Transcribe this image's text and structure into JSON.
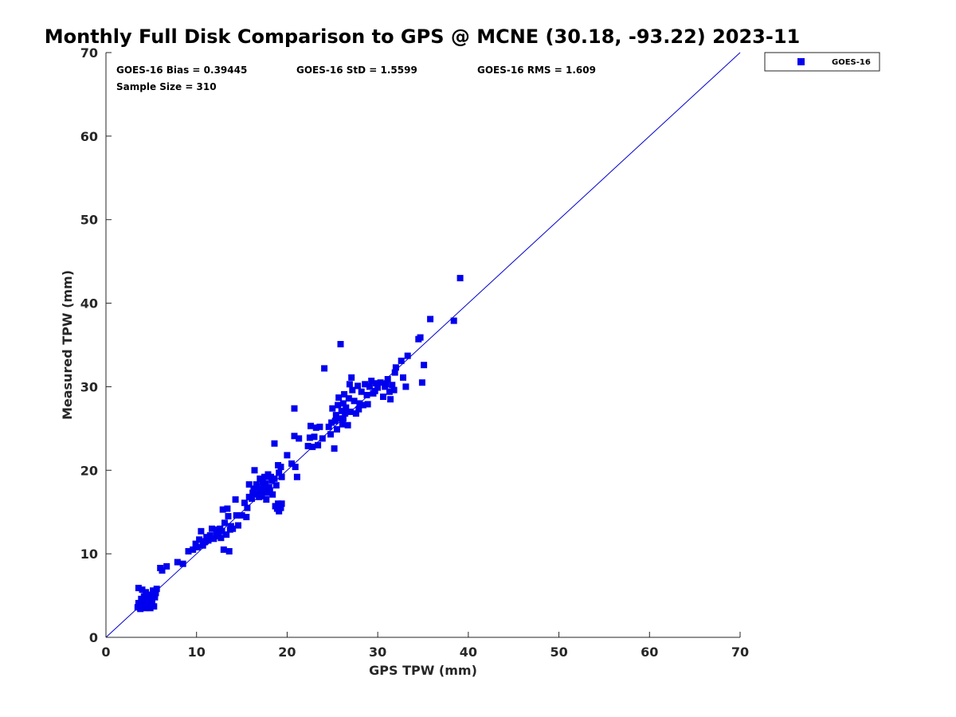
{
  "chart_data": {
    "type": "scatter",
    "title": "Monthly Full Disk Comparison to GPS @ MCNE (30.18, -93.22) 2023-11",
    "xlabel": "GPS TPW (mm)",
    "ylabel": "Measured TPW (mm)",
    "xlim": [
      0,
      70
    ],
    "ylim": [
      0,
      70
    ],
    "xticks": [
      "0",
      "10",
      "20",
      "30",
      "40",
      "50",
      "60",
      "70"
    ],
    "yticks": [
      "0",
      "10",
      "20",
      "30",
      "40",
      "50",
      "60",
      "70"
    ],
    "grid": false,
    "legend_position": "outside-top-right",
    "reference_line": [
      [
        0,
        0
      ],
      [
        70,
        70
      ]
    ],
    "stats": {
      "bias": "GOES-16 Bias = 0.39445",
      "std": "GOES-16 StD = 1.5599",
      "rms": "GOES-16 RMS = 1.609",
      "sample": "Sample Size = 310"
    },
    "colors": {
      "marker": "#0000ee",
      "line": "#0000cc",
      "axis": "#262626"
    },
    "series": [
      {
        "name": "GOES-16",
        "points": [
          [
            3.5,
            3.6
          ],
          [
            3.6,
            4.1
          ],
          [
            3.8,
            3.4
          ],
          [
            3.9,
            4.6
          ],
          [
            4.1,
            3.7
          ],
          [
            4.2,
            4.9
          ],
          [
            4.3,
            4.2
          ],
          [
            4.4,
            5.4
          ],
          [
            4.6,
            3.9
          ],
          [
            4.7,
            4.7
          ],
          [
            4.8,
            5.1
          ],
          [
            4.9,
            3.5
          ],
          [
            5.0,
            4.3
          ],
          [
            5.2,
            5.6
          ],
          [
            5.3,
            3.7
          ],
          [
            5.4,
            4.8
          ],
          [
            5.5,
            5.3
          ],
          [
            3.6,
            5.9
          ],
          [
            4.0,
            5.7
          ],
          [
            5.6,
            5.8
          ],
          [
            4.5,
            5.0
          ],
          [
            5.1,
            4.4
          ],
          [
            4.3,
            3.5
          ],
          [
            3.9,
            3.9
          ],
          [
            6.0,
            8.3
          ],
          [
            6.2,
            8.0
          ],
          [
            6.7,
            8.5
          ],
          [
            7.9,
            9.0
          ],
          [
            8.5,
            8.8
          ],
          [
            9.1,
            10.3
          ],
          [
            9.6,
            10.5
          ],
          [
            9.9,
            11.2
          ],
          [
            10.1,
            10.8
          ],
          [
            10.3,
            11.7
          ],
          [
            10.5,
            12.7
          ],
          [
            10.7,
            11.0
          ],
          [
            10.9,
            11.4
          ],
          [
            11.1,
            12.0
          ],
          [
            11.3,
            11.6
          ],
          [
            11.5,
            12.2
          ],
          [
            11.7,
            13.0
          ],
          [
            11.9,
            11.8
          ],
          [
            12.2,
            12.5
          ],
          [
            12.4,
            12.1
          ],
          [
            12.6,
            13.0
          ],
          [
            12.8,
            12.7
          ],
          [
            12.9,
            15.3
          ],
          [
            13.1,
            13.7
          ],
          [
            13.3,
            12.3
          ],
          [
            13.5,
            14.5
          ],
          [
            13.4,
            15.4
          ],
          [
            13.7,
            12.9
          ],
          [
            13.0,
            10.5
          ],
          [
            13.6,
            10.3
          ],
          [
            14.0,
            13.0
          ],
          [
            14.3,
            16.5
          ],
          [
            14.6,
            13.4
          ],
          [
            14.4,
            14.6
          ],
          [
            12.7,
            11.9
          ],
          [
            12.3,
            12.9
          ],
          [
            13.8,
            13.3
          ],
          [
            11.0,
            11.5
          ],
          [
            15.0,
            14.6
          ],
          [
            15.3,
            16.1
          ],
          [
            15.6,
            15.5
          ],
          [
            15.8,
            16.8
          ],
          [
            15.5,
            14.4
          ],
          [
            16.1,
            16.6
          ],
          [
            16.3,
            17.8
          ],
          [
            16.5,
            17.1
          ],
          [
            16.7,
            18.0
          ],
          [
            16.9,
            16.8
          ],
          [
            17.0,
            19.0
          ],
          [
            17.1,
            17.5
          ],
          [
            17.3,
            18.6
          ],
          [
            17.4,
            17.9
          ],
          [
            17.5,
            19.2
          ],
          [
            17.6,
            18.4
          ],
          [
            17.8,
            17.3
          ],
          [
            17.9,
            19.5
          ],
          [
            18.0,
            18.0
          ],
          [
            18.1,
            17.6
          ],
          [
            18.3,
            18.8
          ],
          [
            18.4,
            17.1
          ],
          [
            18.6,
            19.0
          ],
          [
            18.8,
            18.2
          ],
          [
            16.4,
            20.0
          ],
          [
            15.8,
            18.3
          ],
          [
            16.2,
            17.3
          ],
          [
            17.2,
            16.9
          ],
          [
            17.7,
            16.5
          ],
          [
            18.2,
            19.2
          ],
          [
            17.0,
            17.7
          ],
          [
            16.6,
            18.3
          ],
          [
            18.7,
            15.7
          ],
          [
            18.9,
            15.4
          ],
          [
            19.0,
            16.0
          ],
          [
            19.1,
            15.1
          ],
          [
            19.3,
            15.5
          ],
          [
            19.4,
            16.0
          ],
          [
            19.2,
            15.7
          ],
          [
            18.6,
            23.2
          ],
          [
            19.0,
            20.6
          ],
          [
            19.3,
            20.4
          ],
          [
            19.1,
            19.7
          ],
          [
            19.4,
            19.2
          ],
          [
            20.0,
            21.8
          ],
          [
            20.5,
            20.8
          ],
          [
            20.9,
            20.4
          ],
          [
            21.1,
            19.2
          ],
          [
            20.8,
            24.1
          ],
          [
            21.3,
            23.8
          ],
          [
            20.8,
            27.4
          ],
          [
            22.3,
            22.9
          ],
          [
            22.5,
            23.9
          ],
          [
            22.6,
            25.3
          ],
          [
            22.8,
            22.8
          ],
          [
            23.0,
            24.0
          ],
          [
            23.2,
            25.1
          ],
          [
            23.4,
            23.0
          ],
          [
            23.6,
            25.2
          ],
          [
            23.9,
            23.8
          ],
          [
            24.1,
            32.2
          ],
          [
            24.6,
            25.2
          ],
          [
            24.8,
            24.3
          ],
          [
            25.0,
            27.4
          ],
          [
            25.2,
            22.6
          ],
          [
            25.3,
            25.9
          ],
          [
            25.4,
            26.6
          ],
          [
            25.5,
            24.9
          ],
          [
            25.6,
            27.8
          ],
          [
            25.8,
            26.2
          ],
          [
            25.9,
            35.1
          ],
          [
            26.0,
            27.1
          ],
          [
            26.1,
            25.5
          ],
          [
            26.2,
            28.0
          ],
          [
            26.3,
            29.1
          ],
          [
            26.4,
            26.8
          ],
          [
            26.5,
            27.5
          ],
          [
            26.7,
            25.4
          ],
          [
            26.8,
            28.6
          ],
          [
            26.9,
            30.3
          ],
          [
            27.0,
            27.0
          ],
          [
            27.1,
            31.1
          ],
          [
            27.2,
            29.6
          ],
          [
            27.4,
            28.3
          ],
          [
            27.6,
            26.8
          ],
          [
            27.8,
            30.1
          ],
          [
            28.0,
            28.0
          ],
          [
            28.2,
            29.4
          ],
          [
            28.4,
            27.8
          ],
          [
            28.6,
            30.3
          ],
          [
            28.8,
            29.0
          ],
          [
            28.9,
            27.9
          ],
          [
            29.1,
            30.0
          ],
          [
            29.3,
            30.7
          ],
          [
            29.5,
            29.2
          ],
          [
            29.8,
            30.4
          ],
          [
            30.0,
            29.9
          ],
          [
            30.3,
            30.5
          ],
          [
            30.6,
            28.8
          ],
          [
            30.8,
            30.0
          ],
          [
            31.1,
            30.9
          ],
          [
            31.3,
            29.4
          ],
          [
            31.4,
            28.5
          ],
          [
            31.6,
            30.2
          ],
          [
            31.8,
            29.6
          ],
          [
            32.0,
            32.3
          ],
          [
            31.9,
            31.7
          ],
          [
            32.6,
            33.1
          ],
          [
            32.8,
            31.1
          ],
          [
            33.1,
            30.0
          ],
          [
            33.3,
            33.7
          ],
          [
            34.5,
            35.7
          ],
          [
            34.7,
            35.9
          ],
          [
            34.9,
            30.5
          ],
          [
            35.1,
            32.6
          ],
          [
            35.8,
            38.1
          ],
          [
            38.4,
            37.9
          ],
          [
            39.1,
            43.0
          ],
          [
            26.2,
            26.2
          ],
          [
            27.9,
            27.3
          ],
          [
            30.9,
            30.3
          ],
          [
            25.7,
            28.7
          ],
          [
            24.9,
            25.7
          ],
          [
            29.7,
            29.5
          ]
        ]
      }
    ]
  }
}
